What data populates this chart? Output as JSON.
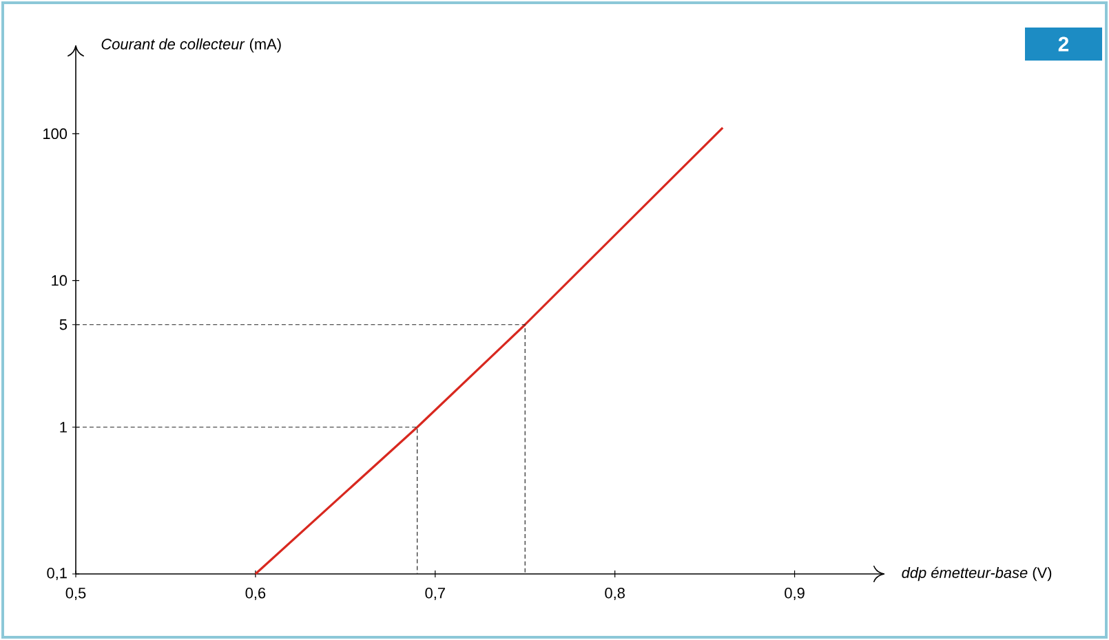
{
  "chart_data": {
    "type": "line",
    "xlabel": "*ddp émetteur-base* (V)",
    "ylabel": "*Courant de collecteur* (mA)",
    "log": "y",
    "xlim": [
      0.5,
      0.95
    ],
    "ylim": [
      0.1,
      400
    ],
    "xticks": [
      {
        "value": 0.5,
        "label": "0,5"
      },
      {
        "value": 0.6,
        "label": "0,6"
      },
      {
        "value": 0.7,
        "label": "0,7"
      },
      {
        "value": 0.8,
        "label": "0,8"
      },
      {
        "value": 0.9,
        "label": "0,9"
      }
    ],
    "yticks": [
      {
        "value": 0.1,
        "label": "0,1"
      },
      1,
      5,
      10,
      100
    ],
    "series": [
      {
        "color": "#d8281f",
        "x": [
          0.6,
          0.69,
          0.75,
          0.86
        ],
        "values": [
          0.1,
          1,
          5,
          110
        ],
        "line_style": "solid"
      },
      {
        "color": "#222222",
        "x": [
          0.5,
          0.69,
          0.69
        ],
        "values": [
          1,
          1,
          0.1
        ],
        "line_style": "dashed"
      },
      {
        "color": "#222222",
        "x": [
          0.5,
          0.75,
          0.75
        ],
        "values": [
          5,
          5,
          0.1
        ],
        "line_style": "dashed"
      }
    ],
    "marker": "none",
    "annotations": [
      "2"
    ]
  }
}
